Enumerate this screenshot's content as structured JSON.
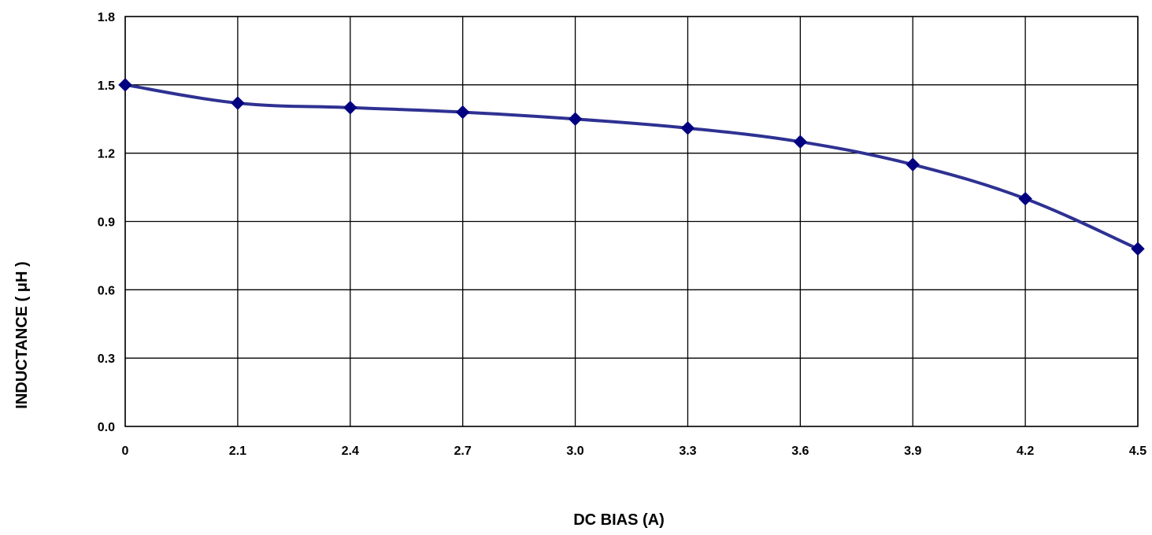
{
  "chart_data": {
    "type": "line",
    "title": "",
    "xlabel": "DC BIAS (A)",
    "ylabel": "INDUCTANCE ( μH )",
    "categories": [
      "0",
      "2.1",
      "2.4",
      "2.7",
      "3.0",
      "3.3",
      "3.6",
      "3.9",
      "4.2",
      "4.5"
    ],
    "y_ticks": [
      "0.0",
      "0.3",
      "0.6",
      "0.9",
      "1.2",
      "1.5",
      "1.8"
    ],
    "ylim": [
      0,
      1.8
    ],
    "grid": true,
    "legend": "none",
    "series": [
      {
        "values": [
          1.5,
          1.42,
          1.4,
          1.38,
          1.35,
          1.31,
          1.25,
          1.15,
          1.0,
          0.78
        ],
        "color": "#2E3192",
        "marker": "diamond",
        "marker_color": "#000080"
      }
    ]
  }
}
